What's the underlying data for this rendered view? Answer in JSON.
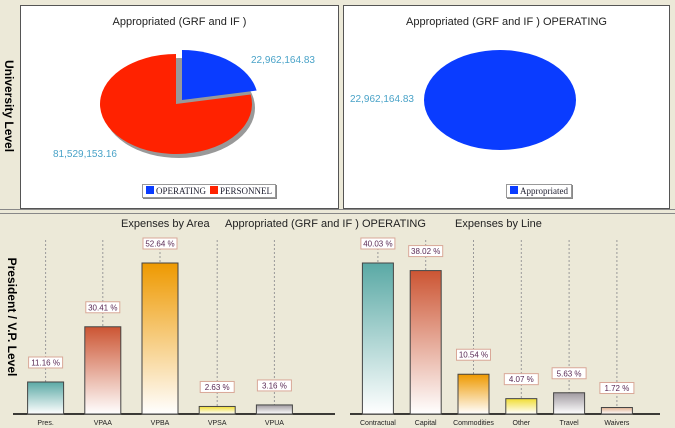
{
  "side_labels": {
    "top": "University Level",
    "bottom": "President / V.P. Level"
  },
  "chart_data": [
    {
      "type": "pie",
      "title": "Appropriated (GRF and IF )",
      "slices": [
        {
          "label": "OPERATING",
          "value": 22962164.83,
          "display": "22,962,164.83",
          "color": "#0a3cff"
        },
        {
          "label": "PERSONNEL",
          "value": 81529153.16,
          "display": "81,529,153.16",
          "color": "#ff2200"
        }
      ],
      "legend": [
        "OPERATING",
        "PERSONNEL"
      ],
      "legend_position": "bottom"
    },
    {
      "type": "pie",
      "title": "Appropriated (GRF and IF )  OPERATING",
      "slices": [
        {
          "label": "Appropriated",
          "value": 22962164.83,
          "display": "22,962,164.83",
          "color": "#0a3cff"
        }
      ],
      "legend": [
        "Appropriated"
      ],
      "legend_position": "bottom"
    },
    {
      "type": "bar",
      "title": "Expenses by Area",
      "categories": [
        "Pres.",
        "VPAA",
        "VPBA",
        "VPSA",
        "VPUA"
      ],
      "values": [
        11.16,
        30.41,
        52.64,
        2.63,
        3.16
      ],
      "labels": [
        "11.16 %",
        "30.41 %",
        "52.64 %",
        "2.63 %",
        "3.16 %"
      ],
      "colors": [
        "#5aa9a5",
        "#cc5533",
        "#ee9900",
        "#f0dd33",
        "#a09aa0"
      ]
    },
    {
      "type": "bar",
      "title": "Expenses by Line",
      "categories": [
        "Contractual",
        "Capital",
        "Commodities",
        "Other",
        "Travel",
        "Waivers"
      ],
      "values": [
        40.03,
        38.02,
        10.54,
        4.07,
        5.63,
        1.72
      ],
      "labels": [
        "40.03 %",
        "38.02 %",
        "10.54 %",
        "4.07 %",
        "5.63 %",
        "1.72 %"
      ],
      "colors": [
        "#5aa9a5",
        "#cc5533",
        "#ee9900",
        "#f0dd33",
        "#a09aa0",
        "#e0b090"
      ]
    }
  ],
  "bottom_subtitle": "Appropriated (GRF and IF )  OPERATING"
}
